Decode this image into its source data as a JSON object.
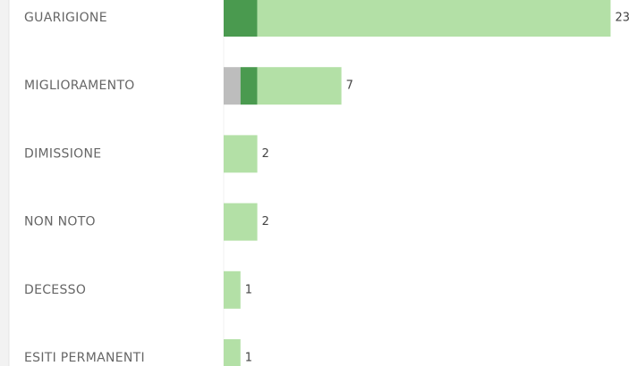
{
  "chart_data": {
    "type": "stacked-bar-horizontal",
    "categories": [
      "GUARIGIONE",
      "MIGLIORAMENTO",
      "DIMISSIONE",
      "NON NOTO",
      "DECESSO",
      "ESITI PERMANENTI"
    ],
    "series": [
      {
        "color": "#bdbdbd",
        "values": [
          0,
          1,
          0,
          0,
          0,
          0
        ]
      },
      {
        "color": "#4a9a4f",
        "values": [
          2,
          1,
          0,
          0,
          0,
          0
        ]
      },
      {
        "color": "#b3e0a6",
        "values": [
          21,
          5,
          2,
          2,
          1,
          1
        ]
      }
    ],
    "totals": [
      23,
      7,
      2,
      2,
      1,
      1
    ],
    "xlim": [
      0,
      24.57
    ]
  }
}
